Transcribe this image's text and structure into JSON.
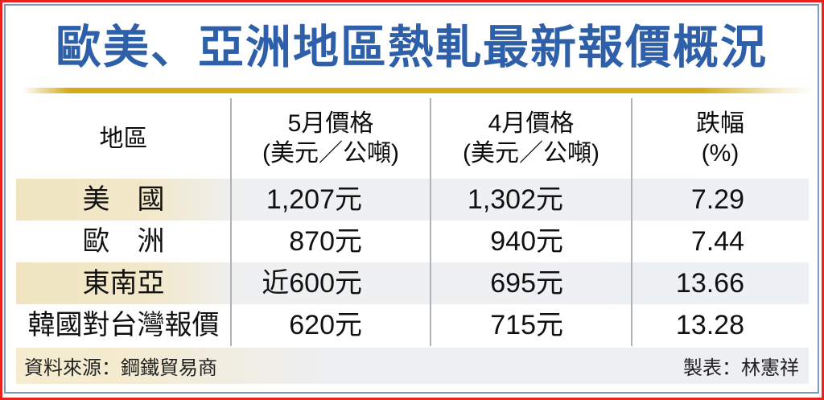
{
  "title": {
    "text": "歐美、亞洲地區熱軋最新報價概況",
    "color": "#2e5fa9"
  },
  "frame": {
    "outer_border_color": "#e8231d",
    "inner_border_color": "#8196bc",
    "gold_line_color": "#d3ab15"
  },
  "table": {
    "columns": [
      {
        "label": "地區",
        "sub": ""
      },
      {
        "label": "5月價格",
        "sub": "(美元／公噸)"
      },
      {
        "label": "4月價格",
        "sub": "(美元／公噸)"
      },
      {
        "label": "跌幅",
        "sub": "(%)"
      }
    ],
    "rows": [
      {
        "region": "美　國",
        "may": "1,207元",
        "april": "1,302元",
        "decline": "7.29"
      },
      {
        "region": "歐　洲",
        "may": "870元",
        "april": "940元",
        "decline": "7.44"
      },
      {
        "region": "東南亞",
        "may": "近600元",
        "april": "695元",
        "decline": "13.66"
      },
      {
        "region": "韓國對台灣報價",
        "may": "620元",
        "april": "715元",
        "decline": "13.28"
      }
    ],
    "stripe_cream_color": "#f1e6c4",
    "stripe_gray_color": "#edf0f4"
  },
  "footer": {
    "source": "資料來源：鋼鐵貿易商",
    "credit": "製表：林憲祥"
  },
  "chart_data": {
    "type": "table",
    "title": "歐美、亞洲地區熱軋最新報價概況",
    "columns": [
      "地區",
      "5月價格(美元／公噸)",
      "4月價格(美元／公噸)",
      "跌幅(%)"
    ],
    "rows": [
      [
        "美國",
        "1,207元",
        "1,302元",
        7.29
      ],
      [
        "歐洲",
        "870元",
        "940元",
        7.44
      ],
      [
        "東南亞",
        "近600元",
        "695元",
        13.66
      ],
      [
        "韓國對台灣報價",
        "620元",
        "715元",
        13.28
      ]
    ],
    "source": "鋼鐵貿易商",
    "credit": "林憲祥"
  }
}
